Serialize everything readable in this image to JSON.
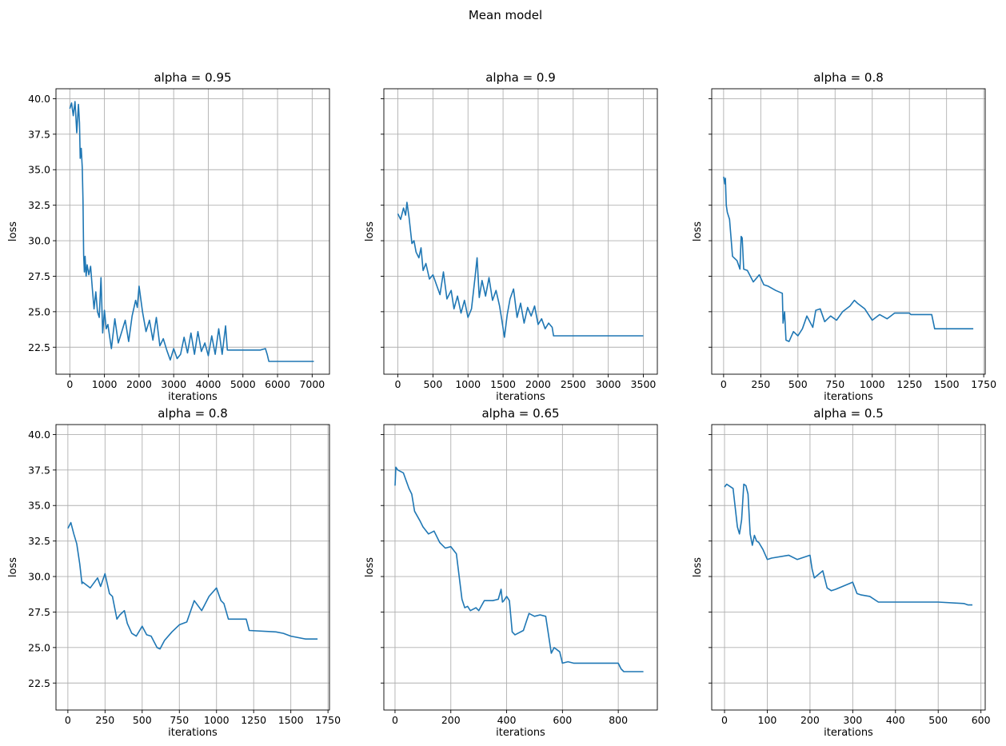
{
  "figure": {
    "title": "Mean model"
  },
  "colors": {
    "series": "#1f77b4",
    "grid": "#b0b0b0"
  },
  "chart_data": [
    {
      "type": "line",
      "title": "alpha = 0.95",
      "xlabel": "iterations",
      "ylabel": "loss",
      "xlim": [
        -400,
        7500
      ],
      "ylim": [
        20.6,
        40.7
      ],
      "xticks": [
        0,
        1000,
        2000,
        3000,
        4000,
        5000,
        6000,
        7000
      ],
      "yticks": [
        22.5,
        25.0,
        27.5,
        30.0,
        32.5,
        35.0,
        37.5,
        40.0
      ],
      "show_yticklabels": true,
      "grid": true,
      "x": [
        0,
        50,
        100,
        150,
        200,
        250,
        280,
        300,
        330,
        360,
        380,
        400,
        420,
        440,
        470,
        500,
        550,
        600,
        650,
        700,
        750,
        800,
        850,
        900,
        950,
        1000,
        1050,
        1100,
        1200,
        1300,
        1400,
        1500,
        1600,
        1700,
        1800,
        1900,
        1950,
        2000,
        2100,
        2200,
        2300,
        2400,
        2500,
        2600,
        2700,
        2800,
        2900,
        3000,
        3100,
        3200,
        3300,
        3400,
        3500,
        3600,
        3700,
        3800,
        3900,
        4000,
        4100,
        4200,
        4300,
        4400,
        4500,
        4550,
        5000,
        5500,
        5650,
        5700,
        5750,
        5800,
        6500,
        7050
      ],
      "y": [
        39.3,
        39.7,
        38.8,
        39.8,
        37.6,
        39.6,
        38.3,
        35.8,
        36.5,
        35.1,
        32.8,
        29.0,
        27.8,
        28.9,
        27.5,
        28.3,
        27.6,
        28.2,
        26.6,
        25.2,
        26.4,
        25.0,
        24.6,
        27.4,
        23.5,
        25.1,
        23.8,
        24.1,
        22.4,
        24.5,
        22.8,
        23.6,
        24.4,
        22.9,
        24.7,
        25.8,
        25.3,
        26.8,
        25.0,
        23.6,
        24.4,
        23.0,
        24.6,
        22.6,
        23.1,
        22.3,
        21.6,
        22.4,
        21.7,
        22.0,
        23.2,
        22.1,
        23.5,
        22.0,
        23.6,
        22.2,
        22.8,
        21.9,
        23.3,
        22.0,
        23.8,
        22.0,
        24.0,
        22.3,
        22.3,
        22.3,
        22.4,
        22.0,
        21.5,
        21.5,
        21.5,
        21.5
      ]
    },
    {
      "type": "line",
      "title": "alpha = 0.9",
      "xlabel": "iterations",
      "ylabel": "loss",
      "xlim": [
        -200,
        3700
      ],
      "ylim": [
        20.6,
        40.7
      ],
      "xticks": [
        0,
        500,
        1000,
        1500,
        2000,
        2500,
        3000,
        3500
      ],
      "yticks": [
        22.5,
        25.0,
        27.5,
        30.0,
        32.5,
        35.0,
        37.5,
        40.0
      ],
      "show_yticklabels": false,
      "grid": true,
      "x": [
        0,
        40,
        80,
        110,
        130,
        160,
        200,
        230,
        260,
        300,
        330,
        360,
        400,
        450,
        500,
        550,
        600,
        650,
        700,
        760,
        800,
        850,
        900,
        950,
        1000,
        1050,
        1100,
        1130,
        1160,
        1200,
        1250,
        1300,
        1350,
        1400,
        1450,
        1480,
        1520,
        1560,
        1600,
        1650,
        1700,
        1750,
        1800,
        1850,
        1900,
        1950,
        2000,
        2050,
        2100,
        2150,
        2200,
        2220,
        2250,
        2500,
        3000,
        3500
      ],
      "y": [
        31.9,
        31.5,
        32.3,
        31.8,
        32.7,
        31.6,
        29.8,
        30.0,
        29.2,
        28.8,
        29.5,
        27.9,
        28.4,
        27.3,
        27.6,
        26.9,
        26.2,
        27.8,
        25.9,
        26.5,
        25.2,
        26.1,
        24.9,
        25.8,
        24.6,
        25.2,
        27.4,
        28.8,
        26.0,
        27.2,
        26.1,
        27.4,
        25.8,
        26.5,
        25.4,
        24.5,
        23.2,
        24.8,
        25.9,
        26.6,
        24.6,
        25.6,
        24.2,
        25.3,
        24.7,
        25.4,
        24.1,
        24.5,
        23.8,
        24.2,
        23.9,
        23.3,
        23.3,
        23.3,
        23.3,
        23.3
      ]
    },
    {
      "type": "line",
      "title": "alpha = 0.8",
      "xlabel": "iterations",
      "ylabel": "loss",
      "xlim": [
        -80,
        1760
      ],
      "ylim": [
        20.6,
        40.7
      ],
      "xticks": [
        0,
        250,
        500,
        750,
        1000,
        1250,
        1500,
        1750
      ],
      "yticks": [
        22.5,
        25.0,
        27.5,
        30.0,
        32.5,
        35.0,
        37.5,
        40.0
      ],
      "show_yticklabels": false,
      "grid": true,
      "x": [
        0,
        8,
        12,
        18,
        25,
        40,
        60,
        90,
        110,
        118,
        125,
        135,
        160,
        200,
        240,
        270,
        300,
        350,
        395,
        400,
        410,
        420,
        440,
        470,
        500,
        530,
        560,
        600,
        620,
        650,
        680,
        720,
        760,
        800,
        850,
        880,
        900,
        950,
        1000,
        1050,
        1100,
        1150,
        1200,
        1250,
        1260,
        1300,
        1350,
        1400,
        1420,
        1500,
        1600,
        1680
      ],
      "y": [
        34.5,
        34.0,
        34.4,
        32.5,
        32.0,
        31.5,
        28.9,
        28.6,
        28.0,
        30.3,
        30.2,
        28.0,
        27.9,
        27.1,
        27.6,
        26.9,
        26.8,
        26.5,
        26.3,
        24.2,
        25.0,
        23.0,
        22.9,
        23.6,
        23.3,
        23.8,
        24.7,
        23.9,
        25.1,
        25.2,
        24.3,
        24.7,
        24.4,
        25.0,
        25.4,
        25.8,
        25.6,
        25.2,
        24.4,
        24.8,
        24.5,
        24.9,
        24.9,
        24.9,
        24.8,
        24.8,
        24.8,
        24.8,
        23.8,
        23.8,
        23.8,
        23.8
      ]
    },
    {
      "type": "line",
      "title": "alpha = 0.8",
      "xlabel": "iterations",
      "ylabel": "loss",
      "xlim": [
        -80,
        1760
      ],
      "ylim": [
        20.6,
        40.7
      ],
      "xticks": [
        0,
        250,
        500,
        750,
        1000,
        1250,
        1500,
        1750
      ],
      "yticks": [
        22.5,
        25.0,
        27.5,
        30.0,
        32.5,
        35.0,
        37.5,
        40.0
      ],
      "show_yticklabels": true,
      "grid": true,
      "x": [
        0,
        20,
        40,
        60,
        80,
        95,
        100,
        150,
        200,
        220,
        250,
        280,
        300,
        330,
        350,
        380,
        400,
        430,
        460,
        500,
        530,
        560,
        600,
        620,
        650,
        700,
        750,
        800,
        850,
        900,
        950,
        1000,
        1030,
        1050,
        1080,
        1120,
        1200,
        1220,
        1400,
        1450,
        1500,
        1600,
        1680
      ],
      "y": [
        33.4,
        33.8,
        33.0,
        32.3,
        30.9,
        29.5,
        29.6,
        29.2,
        29.9,
        29.3,
        30.2,
        28.8,
        28.6,
        27.0,
        27.3,
        27.6,
        26.7,
        26.0,
        25.8,
        26.5,
        25.9,
        25.8,
        25.0,
        24.9,
        25.5,
        26.1,
        26.6,
        26.8,
        28.3,
        27.6,
        28.6,
        29.2,
        28.3,
        28.1,
        27.0,
        27.0,
        27.0,
        26.2,
        26.1,
        26.0,
        25.8,
        25.6,
        25.6
      ]
    },
    {
      "type": "line",
      "title": "alpha = 0.65",
      "xlabel": "iterations",
      "ylabel": "loss",
      "xlim": [
        -40,
        940
      ],
      "ylim": [
        20.6,
        40.7
      ],
      "xticks": [
        0,
        200,
        400,
        600,
        800
      ],
      "yticks": [
        22.5,
        25.0,
        27.5,
        30.0,
        32.5,
        35.0,
        37.5,
        40.0
      ],
      "show_yticklabels": false,
      "grid": true,
      "x": [
        0,
        3,
        10,
        30,
        50,
        60,
        70,
        90,
        100,
        120,
        140,
        160,
        180,
        200,
        220,
        230,
        240,
        250,
        260,
        270,
        290,
        300,
        320,
        350,
        370,
        380,
        385,
        390,
        400,
        410,
        420,
        430,
        460,
        480,
        500,
        520,
        540,
        560,
        570,
        590,
        600,
        620,
        640,
        700,
        800,
        810,
        820,
        890
      ],
      "y": [
        36.4,
        37.7,
        37.5,
        37.3,
        36.2,
        35.8,
        34.6,
        33.9,
        33.5,
        33.0,
        33.2,
        32.4,
        32.0,
        32.1,
        31.6,
        30.0,
        28.4,
        27.8,
        27.9,
        27.6,
        27.8,
        27.6,
        28.3,
        28.3,
        28.4,
        29.1,
        28.2,
        28.3,
        28.6,
        28.3,
        26.1,
        25.9,
        26.2,
        27.4,
        27.2,
        27.3,
        27.2,
        24.6,
        25.0,
        24.7,
        23.9,
        24.0,
        23.9,
        23.9,
        23.9,
        23.5,
        23.3,
        23.3
      ]
    },
    {
      "type": "line",
      "title": "alpha = 0.5",
      "xlabel": "iterations",
      "ylabel": "loss",
      "xlim": [
        -30,
        610
      ],
      "ylim": [
        20.6,
        40.7
      ],
      "xticks": [
        0,
        100,
        200,
        300,
        400,
        500,
        600
      ],
      "yticks": [
        22.5,
        25.0,
        27.5,
        30.0,
        32.5,
        35.0,
        37.5,
        40.0
      ],
      "show_yticklabels": false,
      "grid": true,
      "x": [
        0,
        5,
        20,
        30,
        35,
        40,
        45,
        50,
        55,
        60,
        65,
        70,
        75,
        80,
        90,
        100,
        110,
        150,
        170,
        200,
        205,
        210,
        230,
        240,
        250,
        260,
        300,
        310,
        320,
        340,
        360,
        370,
        400,
        500,
        560,
        570,
        580
      ],
      "y": [
        36.3,
        36.5,
        36.2,
        33.5,
        33.0,
        34.0,
        36.5,
        36.4,
        35.8,
        33.0,
        32.2,
        32.9,
        32.5,
        32.4,
        31.9,
        31.2,
        31.3,
        31.5,
        31.2,
        31.5,
        30.5,
        29.9,
        30.4,
        29.2,
        29.0,
        29.1,
        29.6,
        28.8,
        28.7,
        28.6,
        28.2,
        28.2,
        28.2,
        28.2,
        28.1,
        28.0,
        28.0
      ]
    }
  ]
}
